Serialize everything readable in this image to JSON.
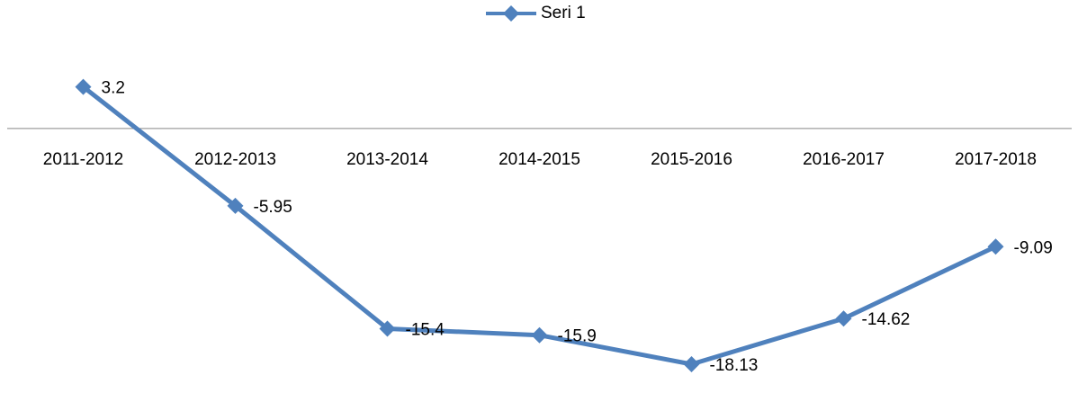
{
  "chart_data": {
    "type": "line",
    "categories": [
      "2011-2012",
      "2012-2013",
      "2013-2014",
      "2014-2015",
      "2015-2016",
      "2016-2017",
      "2017-2018"
    ],
    "series": [
      {
        "name": "Seri 1",
        "color": "#4f81bd",
        "values": [
          3.2,
          -5.95,
          -15.4,
          -15.9,
          -18.13,
          -14.62,
          -9.09
        ]
      }
    ],
    "ylim": [
      -20,
      4
    ],
    "legend": "top",
    "data_labels": true
  }
}
